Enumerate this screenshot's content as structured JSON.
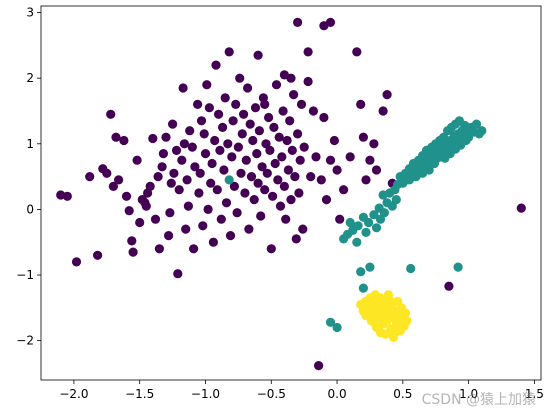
{
  "chart_data": {
    "type": "scatter",
    "title": "",
    "xlabel": "",
    "ylabel": "",
    "xlim": [
      -2.25,
      1.55
    ],
    "ylim": [
      -2.6,
      3.1
    ],
    "x_ticks": [
      -2.0,
      -1.5,
      -1.0,
      -0.5,
      0.0,
      0.5,
      1.0,
      1.5
    ],
    "x_tick_labels": [
      "−2.0",
      "−1.5",
      "−1.0",
      "−0.5",
      "0.0",
      "0.5",
      "1.0",
      "1.5"
    ],
    "y_ticks": [
      -2,
      -1,
      0,
      1,
      2,
      3
    ],
    "y_tick_labels": [
      "−2",
      "−1",
      "0",
      "1",
      "2",
      "3"
    ],
    "grid": false,
    "legend": "none",
    "marker_size": 4.6,
    "series": [
      {
        "color": "#440154",
        "points": [
          [
            -2.1,
            0.22
          ],
          [
            -2.05,
            0.2
          ],
          [
            -1.98,
            -0.8
          ],
          [
            -1.88,
            0.5
          ],
          [
            -1.82,
            -0.7
          ],
          [
            -1.78,
            0.62
          ],
          [
            -1.75,
            0.55
          ],
          [
            -1.72,
            1.45
          ],
          [
            -1.7,
            0.35
          ],
          [
            -1.68,
            1.1
          ],
          [
            -1.66,
            0.45
          ],
          [
            -1.62,
            1.05
          ],
          [
            -1.6,
            0.2
          ],
          [
            -1.58,
            -0.02
          ],
          [
            -1.56,
            -0.48
          ],
          [
            -1.55,
            -0.65
          ],
          [
            -1.52,
            0.75
          ],
          [
            -1.5,
            -0.2
          ],
          [
            -1.48,
            0.15
          ],
          [
            -1.46,
            0.1
          ],
          [
            -1.45,
            0.05
          ],
          [
            -1.44,
            0.25
          ],
          [
            -1.42,
            0.35
          ],
          [
            -1.4,
            1.08
          ],
          [
            -1.38,
            -0.15
          ],
          [
            -1.36,
            0.5
          ],
          [
            -1.35,
            -0.6
          ],
          [
            -1.33,
            0.65
          ],
          [
            -1.32,
            0.85
          ],
          [
            -1.3,
            1.1
          ],
          [
            -1.28,
            -0.4
          ],
          [
            -1.27,
            -0.05
          ],
          [
            -1.26,
            0.4
          ],
          [
            -1.25,
            1.3
          ],
          [
            -1.24,
            0.55
          ],
          [
            -1.22,
            0.9
          ],
          [
            -1.21,
            -0.98
          ],
          [
            -1.2,
            0.3
          ],
          [
            -1.18,
            0.75
          ],
          [
            -1.17,
            1.85
          ],
          [
            -1.16,
            1.0
          ],
          [
            -1.15,
            -0.3
          ],
          [
            -1.14,
            0.45
          ],
          [
            -1.13,
            0.05
          ],
          [
            -1.12,
            1.2
          ],
          [
            -1.1,
            0.95
          ],
          [
            -1.09,
            -0.6
          ],
          [
            -1.08,
            0.65
          ],
          [
            -1.06,
            1.6
          ],
          [
            -1.05,
            0.25
          ],
          [
            -1.04,
            0.55
          ],
          [
            -1.03,
            1.35
          ],
          [
            -1.02,
            -0.25
          ],
          [
            -1.01,
            1.15
          ],
          [
            -1.0,
            0.85
          ],
          [
            -0.99,
            1.9
          ],
          [
            -0.98,
            0.0
          ],
          [
            -0.97,
            1.55
          ],
          [
            -0.96,
            0.4
          ],
          [
            -0.95,
            0.7
          ],
          [
            -0.94,
            -0.5
          ],
          [
            -0.93,
            1.05
          ],
          [
            -0.92,
            2.2
          ],
          [
            -0.91,
            0.3
          ],
          [
            -0.9,
            1.45
          ],
          [
            -0.89,
            0.9
          ],
          [
            -0.88,
            -0.15
          ],
          [
            -0.87,
            1.25
          ],
          [
            -0.86,
            0.6
          ],
          [
            -0.85,
            1.7
          ],
          [
            -0.84,
            0.1
          ],
          [
            -0.83,
            1.0
          ],
          [
            -0.82,
            2.4
          ],
          [
            -0.81,
            -0.4
          ],
          [
            -0.8,
            0.8
          ],
          [
            -0.79,
            1.35
          ],
          [
            -0.78,
            0.35
          ],
          [
            -0.77,
            1.6
          ],
          [
            -0.76,
            -0.05
          ],
          [
            -0.75,
            0.95
          ],
          [
            -0.74,
            2.0
          ],
          [
            -0.73,
            0.55
          ],
          [
            -0.72,
            1.15
          ],
          [
            -0.71,
            1.45
          ],
          [
            -0.7,
            0.25
          ],
          [
            -0.69,
            0.75
          ],
          [
            -0.68,
            1.85
          ],
          [
            -0.67,
            -0.3
          ],
          [
            -0.66,
            1.3
          ],
          [
            -0.65,
            0.5
          ],
          [
            -0.64,
            1.05
          ],
          [
            -0.63,
            0.15
          ],
          [
            -0.62,
            1.55
          ],
          [
            -0.61,
            0.85
          ],
          [
            -0.6,
            0.4
          ],
          [
            -0.59,
            1.2
          ],
          [
            -0.58,
            -0.1
          ],
          [
            -0.57,
            0.65
          ],
          [
            -0.56,
            1.7
          ],
          [
            -0.55,
            0.3
          ],
          [
            -0.54,
            1.0
          ],
          [
            -0.53,
            0.55
          ],
          [
            -0.52,
            1.4
          ],
          [
            -0.51,
            0.9
          ],
          [
            -0.5,
            -0.6
          ],
          [
            -0.49,
            0.2
          ],
          [
            -0.48,
            1.25
          ],
          [
            -0.47,
            0.7
          ],
          [
            -0.46,
            1.9
          ],
          [
            -0.45,
            0.45
          ],
          [
            -0.44,
            1.1
          ],
          [
            -0.43,
            0.05
          ],
          [
            -0.42,
            0.8
          ],
          [
            -0.41,
            1.5
          ],
          [
            -0.4,
            0.35
          ],
          [
            -0.39,
            -0.15
          ],
          [
            -0.38,
            1.05
          ],
          [
            -0.37,
            0.6
          ],
          [
            -0.36,
            1.35
          ],
          [
            -0.35,
            0.15
          ],
          [
            -0.34,
            0.9
          ],
          [
            -0.33,
            1.75
          ],
          [
            -0.32,
            0.5
          ],
          [
            -0.31,
            -0.45
          ],
          [
            -0.3,
            1.15
          ],
          [
            -0.29,
            0.25
          ],
          [
            -0.28,
            0.75
          ],
          [
            -0.27,
            1.6
          ],
          [
            -0.26,
            -0.3
          ],
          [
            -0.25,
            0.95
          ],
          [
            -0.22,
            2.4
          ],
          [
            -0.2,
            0.5
          ],
          [
            -0.18,
            1.5
          ],
          [
            -0.16,
            0.8
          ],
          [
            -0.14,
            -2.38
          ],
          [
            -0.12,
            0.45
          ],
          [
            -0.1,
            1.4
          ],
          [
            -0.08,
            0.15
          ],
          [
            -0.05,
            0.75
          ],
          [
            -0.02,
            1.05
          ],
          [
            0.0,
            0.6
          ],
          [
            0.02,
            -0.15
          ],
          [
            0.05,
            0.3
          ],
          [
            0.1,
            0.8
          ],
          [
            0.15,
            2.4
          ],
          [
            0.18,
            1.6
          ],
          [
            0.2,
            1.1
          ],
          [
            0.22,
            0.45
          ],
          [
            0.25,
            0.75
          ],
          [
            0.28,
            1.0
          ],
          [
            0.3,
            0.6
          ],
          [
            0.35,
            1.5
          ],
          [
            0.38,
            1.75
          ],
          [
            0.42,
            0.4
          ],
          [
            -0.3,
            2.85
          ],
          [
            -0.1,
            2.8
          ],
          [
            -0.05,
            2.85
          ],
          [
            -0.22,
            1.95
          ],
          [
            -0.4,
            2.05
          ],
          [
            -0.6,
            2.35
          ],
          [
            -0.35,
            2.0
          ],
          [
            -0.55,
            1.6
          ],
          [
            1.4,
            0.02
          ],
          [
            0.85,
            -1.17
          ]
        ]
      },
      {
        "color": "#21918c",
        "points": [
          [
            -0.82,
            0.45
          ],
          [
            -0.05,
            -1.72
          ],
          [
            0.05,
            -0.45
          ],
          [
            0.0,
            -1.8
          ],
          [
            0.08,
            -0.38
          ],
          [
            0.12,
            -0.32
          ],
          [
            0.16,
            -0.25
          ],
          [
            0.18,
            -0.95
          ],
          [
            0.2,
            -0.12
          ],
          [
            0.22,
            -0.35
          ],
          [
            0.24,
            -0.2
          ],
          [
            0.25,
            -0.88
          ],
          [
            0.28,
            -0.08
          ],
          [
            0.3,
            -0.28
          ],
          [
            0.32,
            0.02
          ],
          [
            0.33,
            -0.15
          ],
          [
            0.35,
            0.22
          ],
          [
            0.36,
            -0.05
          ],
          [
            0.38,
            0.1
          ],
          [
            0.4,
            0.25
          ],
          [
            0.42,
            0.05
          ],
          [
            0.44,
            0.3
          ],
          [
            0.45,
            0.15
          ],
          [
            0.46,
            0.38
          ],
          [
            0.48,
            0.5
          ],
          [
            0.5,
            0.4
          ],
          [
            0.52,
            0.55
          ],
          [
            0.53,
            0.45
          ],
          [
            0.55,
            0.62
          ],
          [
            0.56,
            -0.9
          ],
          [
            0.57,
            0.5
          ],
          [
            0.58,
            0.7
          ],
          [
            0.6,
            0.58
          ],
          [
            0.62,
            0.75
          ],
          [
            0.63,
            0.65
          ],
          [
            0.65,
            0.82
          ],
          [
            0.66,
            0.6
          ],
          [
            0.67,
            0.72
          ],
          [
            0.68,
            0.9
          ],
          [
            0.7,
            0.68
          ],
          [
            0.71,
            0.8
          ],
          [
            0.72,
            0.95
          ],
          [
            0.73,
            0.7
          ],
          [
            0.74,
            0.85
          ],
          [
            0.75,
            1.0
          ],
          [
            0.76,
            0.78
          ],
          [
            0.77,
            0.92
          ],
          [
            0.78,
            1.05
          ],
          [
            0.79,
            0.8
          ],
          [
            0.8,
            0.95
          ],
          [
            0.81,
            1.1
          ],
          [
            0.82,
            0.88
          ],
          [
            0.83,
            1.02
          ],
          [
            0.84,
            1.2
          ],
          [
            0.85,
            0.9
          ],
          [
            0.86,
            1.05
          ],
          [
            0.87,
            1.25
          ],
          [
            0.88,
            0.98
          ],
          [
            0.89,
            1.12
          ],
          [
            0.9,
            1.3
          ],
          [
            0.91,
            1.0
          ],
          [
            0.92,
            1.15
          ],
          [
            0.93,
            1.35
          ],
          [
            0.94,
            1.05
          ],
          [
            0.95,
            1.2
          ],
          [
            0.96,
            1.08
          ],
          [
            0.97,
            1.28
          ],
          [
            0.98,
            1.15
          ],
          [
            0.99,
            1.22
          ],
          [
            1.0,
            1.1
          ],
          [
            1.02,
            1.25
          ],
          [
            1.04,
            1.18
          ],
          [
            1.06,
            1.3
          ],
          [
            1.08,
            1.15
          ],
          [
            1.1,
            1.2
          ],
          [
            0.6,
            0.5
          ],
          [
            0.65,
            0.55
          ],
          [
            0.7,
            0.6
          ],
          [
            0.55,
            0.45
          ],
          [
            0.62,
            0.68
          ],
          [
            0.74,
            0.7
          ],
          [
            0.78,
            0.82
          ],
          [
            0.82,
            0.78
          ],
          [
            0.86,
            0.85
          ],
          [
            0.9,
            0.92
          ],
          [
            0.94,
            0.98
          ],
          [
            0.98,
            1.05
          ],
          [
            0.92,
            -0.88
          ],
          [
            0.2,
            -1.2
          ],
          [
            0.15,
            -0.5
          ],
          [
            0.1,
            -0.2
          ]
        ]
      },
      {
        "color": "#fde725",
        "points": [
          [
            0.18,
            -1.45
          ],
          [
            0.2,
            -1.55
          ],
          [
            0.22,
            -1.4
          ],
          [
            0.22,
            -1.62
          ],
          [
            0.24,
            -1.5
          ],
          [
            0.25,
            -1.35
          ],
          [
            0.26,
            -1.7
          ],
          [
            0.27,
            -1.45
          ],
          [
            0.28,
            -1.58
          ],
          [
            0.29,
            -1.3
          ],
          [
            0.3,
            -1.5
          ],
          [
            0.3,
            -1.8
          ],
          [
            0.31,
            -1.42
          ],
          [
            0.32,
            -1.65
          ],
          [
            0.33,
            -1.35
          ],
          [
            0.34,
            -1.55
          ],
          [
            0.35,
            -1.75
          ],
          [
            0.35,
            -1.4
          ],
          [
            0.36,
            -1.6
          ],
          [
            0.37,
            -1.9
          ],
          [
            0.38,
            -1.48
          ],
          [
            0.38,
            -1.7
          ],
          [
            0.39,
            -1.3
          ],
          [
            0.4,
            -1.58
          ],
          [
            0.41,
            -1.82
          ],
          [
            0.42,
            -1.45
          ],
          [
            0.42,
            -1.65
          ],
          [
            0.43,
            -1.95
          ],
          [
            0.44,
            -1.55
          ],
          [
            0.45,
            -1.75
          ],
          [
            0.46,
            -1.4
          ],
          [
            0.47,
            -1.62
          ],
          [
            0.48,
            -1.85
          ],
          [
            0.49,
            -1.5
          ],
          [
            0.5,
            -1.68
          ],
          [
            0.51,
            -1.78
          ],
          [
            0.52,
            -1.58
          ],
          [
            0.53,
            -1.7
          ],
          [
            0.33,
            -1.88
          ],
          [
            0.28,
            -1.72
          ],
          [
            0.4,
            -1.38
          ],
          [
            0.36,
            -1.52
          ],
          [
            0.44,
            -1.88
          ],
          [
            0.24,
            -1.6
          ]
        ]
      }
    ]
  },
  "watermark": "CSDN @猿上加猿"
}
